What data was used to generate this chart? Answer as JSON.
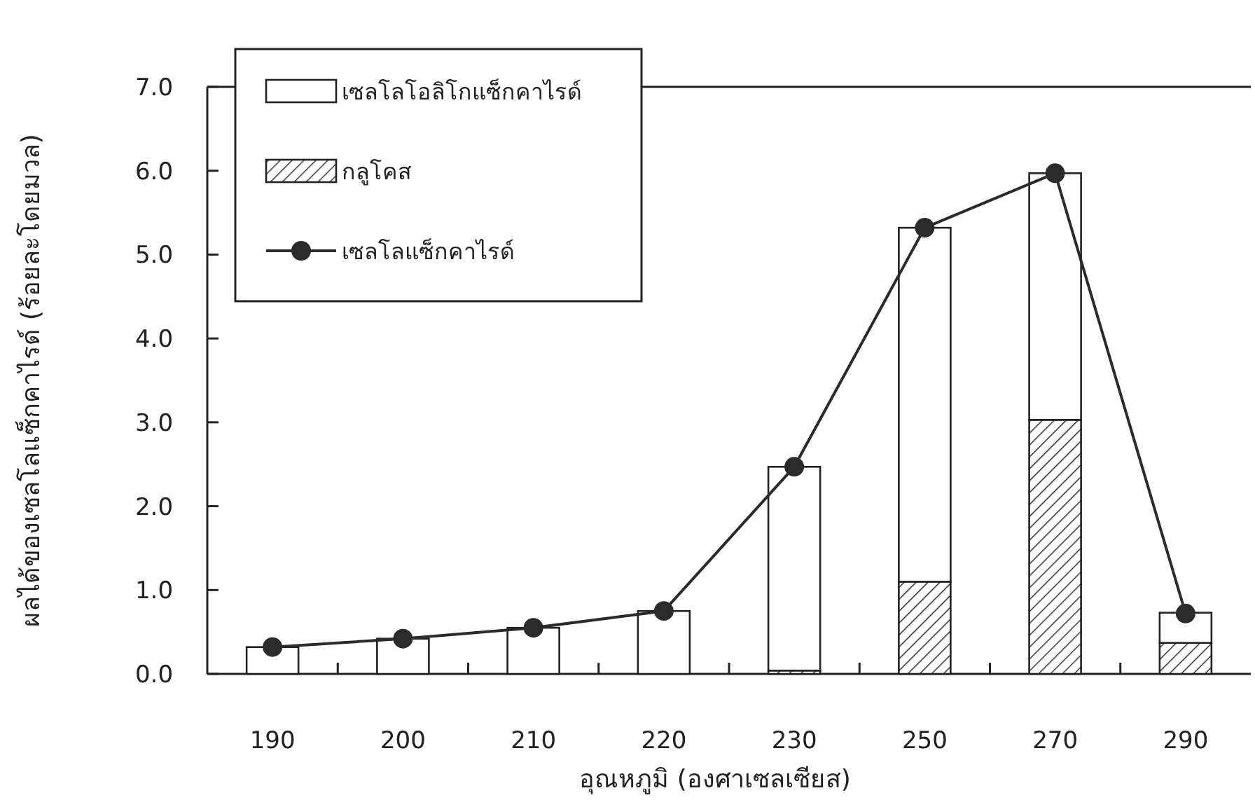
{
  "chart_data": {
    "type": "bar",
    "stacked": true,
    "xlabel": "อุณหภูมิ (องศาเซลเซียส)",
    "ylabel": "ผลได้ของเซลโลแซ็กคาไรด์ (ร้อยละโดยมวล)",
    "categories": [
      "190",
      "200",
      "210",
      "220",
      "230",
      "250",
      "270",
      "290"
    ],
    "ylim": [
      0,
      7
    ],
    "yticks": [
      {
        "value": 0,
        "label": "0.0"
      },
      {
        "value": 1,
        "label": "1.0"
      },
      {
        "value": 2,
        "label": "2.0"
      },
      {
        "value": 3,
        "label": "3.0"
      },
      {
        "value": 4,
        "label": "4.0"
      },
      {
        "value": 5,
        "label": "5.0"
      },
      {
        "value": 6,
        "label": "6.0"
      },
      {
        "value": 7,
        "label": "7.0"
      }
    ],
    "legend": "top left",
    "grid": false,
    "series": [
      {
        "name": "กลูโคส",
        "color": "#222222",
        "values": [
          null,
          0,
          0,
          null,
          0.04,
          1.1,
          3.03,
          0.37
        ]
      },
      {
        "name": "เซลโลโอลิโกแซ็กคาไรด์",
        "color": "#ffffff",
        "values": [
          0.32,
          0.42,
          0.55,
          0.75,
          2.43,
          4.22,
          2.94,
          0.36
        ]
      },
      {
        "name": "เซลโลแซ็กคาไรด์",
        "type": "line",
        "color": "#2b2b2b",
        "marker": "circle",
        "values": [
          0.32,
          0.42,
          0.55,
          0.75,
          2.47,
          5.32,
          5.97,
          0.72
        ]
      }
    ]
  }
}
